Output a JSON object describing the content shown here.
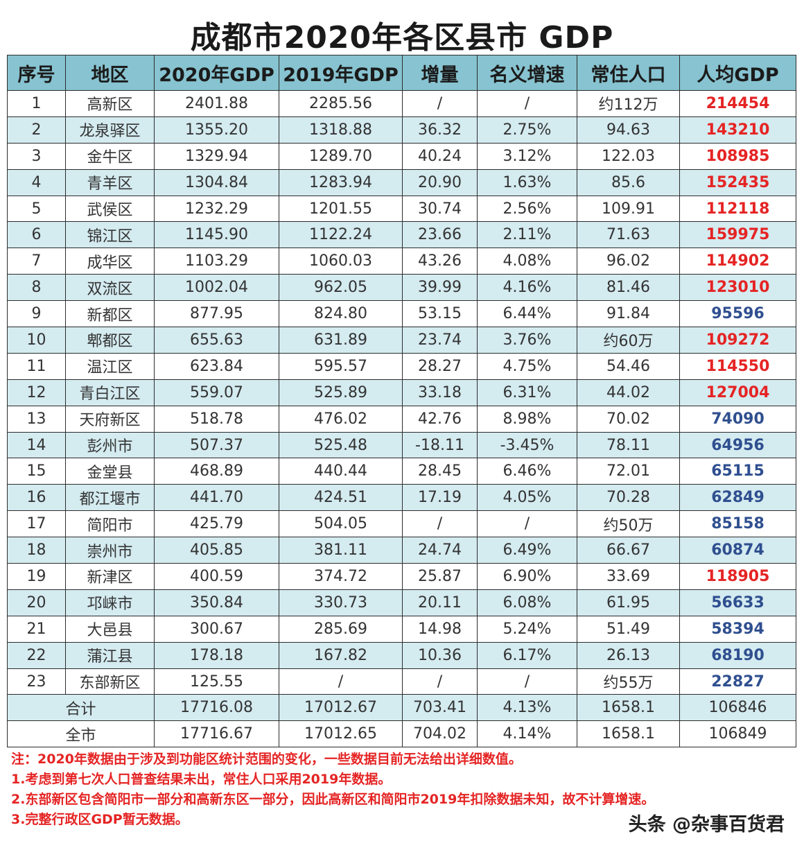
{
  "title": "成都市2020年各区县市 GDP",
  "headers": [
    "序号",
    "地区",
    "2020年GDP",
    "2019年GDP",
    "增量",
    "名义增速",
    "常住人口",
    "人均GDP"
  ],
  "rows": [
    {
      "no": "1",
      "region": "高新区",
      "gdp2020": "2401.88",
      "gdp2019": "2285.56",
      "inc": "/",
      "rate": "/",
      "pop": "约112万",
      "pc": "214454",
      "pc_color": "red"
    },
    {
      "no": "2",
      "region": "龙泉驿区",
      "gdp2020": "1355.20",
      "gdp2019": "1318.88",
      "inc": "36.32",
      "rate": "2.75%",
      "pop": "94.63",
      "pc": "143210",
      "pc_color": "red"
    },
    {
      "no": "3",
      "region": "金牛区",
      "gdp2020": "1329.94",
      "gdp2019": "1289.70",
      "inc": "40.24",
      "rate": "3.12%",
      "pop": "122.03",
      "pc": "108985",
      "pc_color": "red"
    },
    {
      "no": "4",
      "region": "青羊区",
      "gdp2020": "1304.84",
      "gdp2019": "1283.94",
      "inc": "20.90",
      "rate": "1.63%",
      "pop": "85.6",
      "pc": "152435",
      "pc_color": "red"
    },
    {
      "no": "5",
      "region": "武侯区",
      "gdp2020": "1232.29",
      "gdp2019": "1201.55",
      "inc": "30.74",
      "rate": "2.56%",
      "pop": "109.91",
      "pc": "112118",
      "pc_color": "red"
    },
    {
      "no": "6",
      "region": "锦江区",
      "gdp2020": "1145.90",
      "gdp2019": "1122.24",
      "inc": "23.66",
      "rate": "2.11%",
      "pop": "71.63",
      "pc": "159975",
      "pc_color": "red"
    },
    {
      "no": "7",
      "region": "成华区",
      "gdp2020": "1103.29",
      "gdp2019": "1060.03",
      "inc": "43.26",
      "rate": "4.08%",
      "pop": "96.02",
      "pc": "114902",
      "pc_color": "red"
    },
    {
      "no": "8",
      "region": "双流区",
      "gdp2020": "1002.04",
      "gdp2019": "962.05",
      "inc": "39.99",
      "rate": "4.16%",
      "pop": "81.46",
      "pc": "123010",
      "pc_color": "red"
    },
    {
      "no": "9",
      "region": "新都区",
      "gdp2020": "877.95",
      "gdp2019": "824.80",
      "inc": "53.15",
      "rate": "6.44%",
      "pop": "91.84",
      "pc": "95596",
      "pc_color": "blue"
    },
    {
      "no": "10",
      "region": "郫都区",
      "gdp2020": "655.63",
      "gdp2019": "631.89",
      "inc": "23.74",
      "rate": "3.76%",
      "pop": "约60万",
      "pc": "109272",
      "pc_color": "red"
    },
    {
      "no": "11",
      "region": "温江区",
      "gdp2020": "623.84",
      "gdp2019": "595.57",
      "inc": "28.27",
      "rate": "4.75%",
      "pop": "54.46",
      "pc": "114550",
      "pc_color": "red"
    },
    {
      "no": "12",
      "region": "青白江区",
      "gdp2020": "559.07",
      "gdp2019": "525.89",
      "inc": "33.18",
      "rate": "6.31%",
      "pop": "44.02",
      "pc": "127004",
      "pc_color": "red"
    },
    {
      "no": "13",
      "region": "天府新区",
      "gdp2020": "518.78",
      "gdp2019": "476.02",
      "inc": "42.76",
      "rate": "8.98%",
      "pop": "70.02",
      "pc": "74090",
      "pc_color": "blue"
    },
    {
      "no": "14",
      "region": "彭州市",
      "gdp2020": "507.37",
      "gdp2019": "525.48",
      "inc": "-18.11",
      "rate": "-3.45%",
      "pop": "78.11",
      "pc": "64956",
      "pc_color": "blue"
    },
    {
      "no": "15",
      "region": "金堂县",
      "gdp2020": "468.89",
      "gdp2019": "440.44",
      "inc": "28.45",
      "rate": "6.46%",
      "pop": "72.01",
      "pc": "65115",
      "pc_color": "blue"
    },
    {
      "no": "16",
      "region": "都江堰市",
      "gdp2020": "441.70",
      "gdp2019": "424.51",
      "inc": "17.19",
      "rate": "4.05%",
      "pop": "70.28",
      "pc": "62849",
      "pc_color": "blue"
    },
    {
      "no": "17",
      "region": "简阳市",
      "gdp2020": "425.79",
      "gdp2019": "504.05",
      "inc": "/",
      "rate": "/",
      "pop": "约50万",
      "pc": "85158",
      "pc_color": "blue"
    },
    {
      "no": "18",
      "region": "崇州市",
      "gdp2020": "405.85",
      "gdp2019": "381.11",
      "inc": "24.74",
      "rate": "6.49%",
      "pop": "66.67",
      "pc": "60874",
      "pc_color": "blue"
    },
    {
      "no": "19",
      "region": "新津区",
      "gdp2020": "400.59",
      "gdp2019": "374.72",
      "inc": "25.87",
      "rate": "6.90%",
      "pop": "33.69",
      "pc": "118905",
      "pc_color": "red"
    },
    {
      "no": "20",
      "region": "邛崃市",
      "gdp2020": "350.84",
      "gdp2019": "330.73",
      "inc": "20.11",
      "rate": "6.08%",
      "pop": "61.95",
      "pc": "56633",
      "pc_color": "blue"
    },
    {
      "no": "21",
      "region": "大邑县",
      "gdp2020": "300.67",
      "gdp2019": "285.69",
      "inc": "14.98",
      "rate": "5.24%",
      "pop": "51.49",
      "pc": "58394",
      "pc_color": "blue"
    },
    {
      "no": "22",
      "region": "蒲江县",
      "gdp2020": "178.18",
      "gdp2019": "167.82",
      "inc": "10.36",
      "rate": "6.17%",
      "pop": "26.13",
      "pc": "68190",
      "pc_color": "blue"
    },
    {
      "no": "23",
      "region": "东部新区",
      "gdp2020": "125.55",
      "gdp2019": "/",
      "inc": "/",
      "rate": "/",
      "pop": "约55万",
      "pc": "22827",
      "pc_color": "blue"
    }
  ],
  "summary": {
    "label": "合计",
    "gdp2020": "17716.08",
    "gdp2019": "17012.67",
    "inc": "703.41",
    "rate": "4.13%",
    "pop": "1658.1",
    "pc": "106846"
  },
  "city": {
    "label": "全市",
    "gdp2020": "17716.67",
    "gdp2019": "17012.65",
    "inc": "704.02",
    "rate": "4.14%",
    "pop": "1658.1",
    "pc": "106849"
  },
  "notes": [
    "注：2020年数据由于涉及到功能区统计范围的变化，一些数据目前无法给出详细数值。",
    "1.考虑到第七次人口普查结果未出，常住人口采用2019年数据。",
    "2.东部新区包含简阳市一部分和高新东区一部分，因此高新区和简阳市2019年扣除数据未知，故不计算增速。",
    "3.完整行政区GDP暂无数据。"
  ],
  "watermark": "头条 @杂事百货君",
  "colors": {
    "header_bg": "#87c3d0",
    "stripe_bg": "#d4ebf0",
    "red": "#e52424",
    "blue": "#2f4f8f"
  }
}
